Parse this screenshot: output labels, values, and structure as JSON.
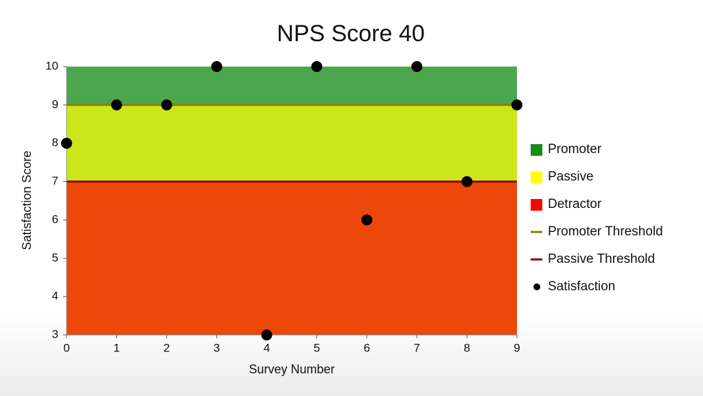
{
  "chart_data": {
    "type": "scatter",
    "title": "NPS Score 40",
    "x_label": "Survey Number",
    "y_label": "Satisfaction Score",
    "x": [
      0,
      1,
      2,
      3,
      4,
      5,
      6,
      7,
      8,
      9
    ],
    "series": [
      {
        "name": "Satisfaction",
        "color": "#000000",
        "values": [
          8,
          9,
          9,
          10,
          3,
          10,
          6,
          10,
          7,
          9
        ]
      }
    ],
    "bands": [
      {
        "name": "Promoter",
        "color": "#1a8a1a",
        "fill": "#4ca64c",
        "from": 9,
        "to": 10
      },
      {
        "name": "Passive",
        "color": "#ffff00",
        "fill": "#cde61a",
        "from": 7,
        "to": 9
      },
      {
        "name": "Detractor",
        "color": "#ff0000",
        "fill": "#ee470a",
        "from": 3,
        "to": 7
      }
    ],
    "thresholds": [
      {
        "name": "Promoter Threshold",
        "color": "#8b8000",
        "value": 9
      },
      {
        "name": "Passive Threshold",
        "color": "#8b0000",
        "value": 7
      }
    ],
    "xlim": [
      0,
      9
    ],
    "ylim": [
      3,
      10
    ],
    "xticks": [
      0,
      1,
      2,
      3,
      4,
      5,
      6,
      7,
      8,
      9
    ],
    "yticks": [
      3,
      4,
      5,
      6,
      7,
      8,
      9,
      10
    ],
    "grid": false,
    "legend": "right"
  }
}
